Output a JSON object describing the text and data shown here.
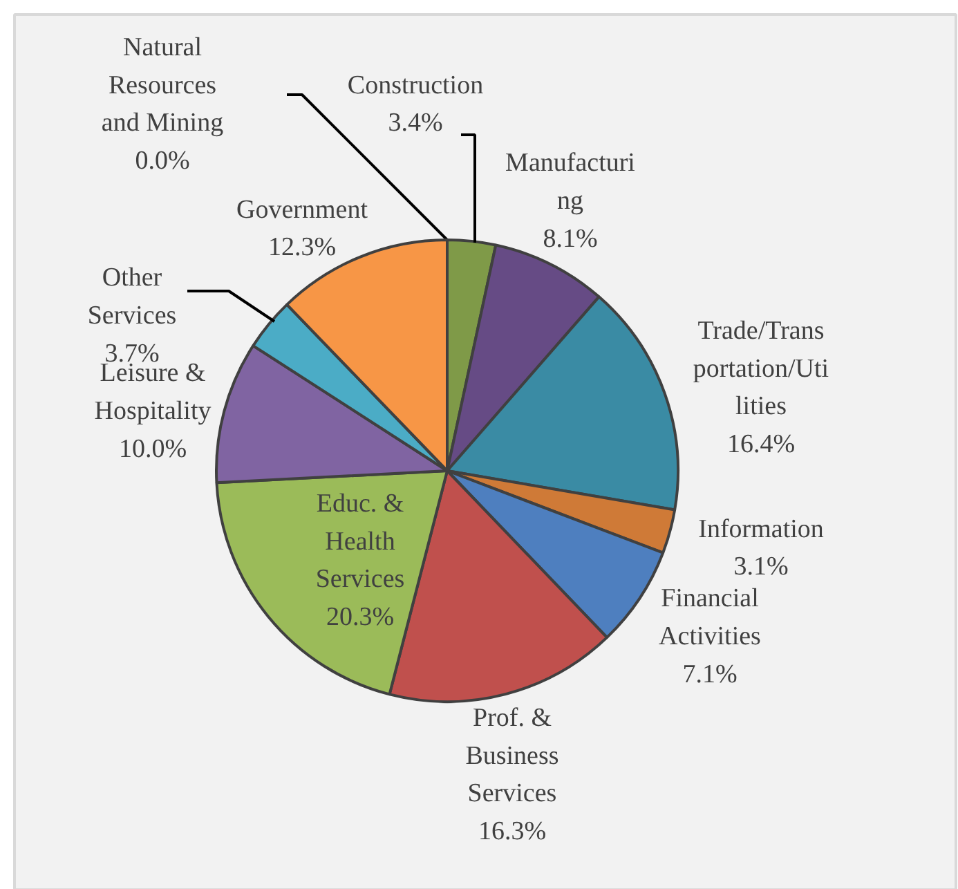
{
  "chart_data": {
    "type": "pie",
    "categories": [
      "Natural\nResources\nand Mining",
      "Construction",
      "Manufacturi\nng",
      "Trade/Trans\nportation/Uti\nlities",
      "Information",
      "Financial\nActivities",
      "Prof. &\nBusiness\nServices",
      "Educ. &\nHealth\nServices",
      "Leisure &\nHospitality",
      "Other\nServices",
      "Government"
    ],
    "values": [
      0.0,
      3.4,
      8.1,
      16.4,
      3.1,
      7.1,
      16.3,
      20.3,
      10.0,
      3.7,
      12.3
    ],
    "colors": [
      "#2c4d75",
      "#7f9a48",
      "#664b85",
      "#3a8ba4",
      "#cf7a37",
      "#4e7fbf",
      "#c0504d",
      "#9bbb59",
      "#8064a2",
      "#4bacc6",
      "#f79646"
    ],
    "value_labels": [
      "0.0%",
      "3.4%",
      "8.1%",
      "16.4%",
      "3.1%",
      "7.1%",
      "16.3%",
      "20.3%",
      "10.0%",
      "3.7%",
      "12.3%"
    ]
  }
}
